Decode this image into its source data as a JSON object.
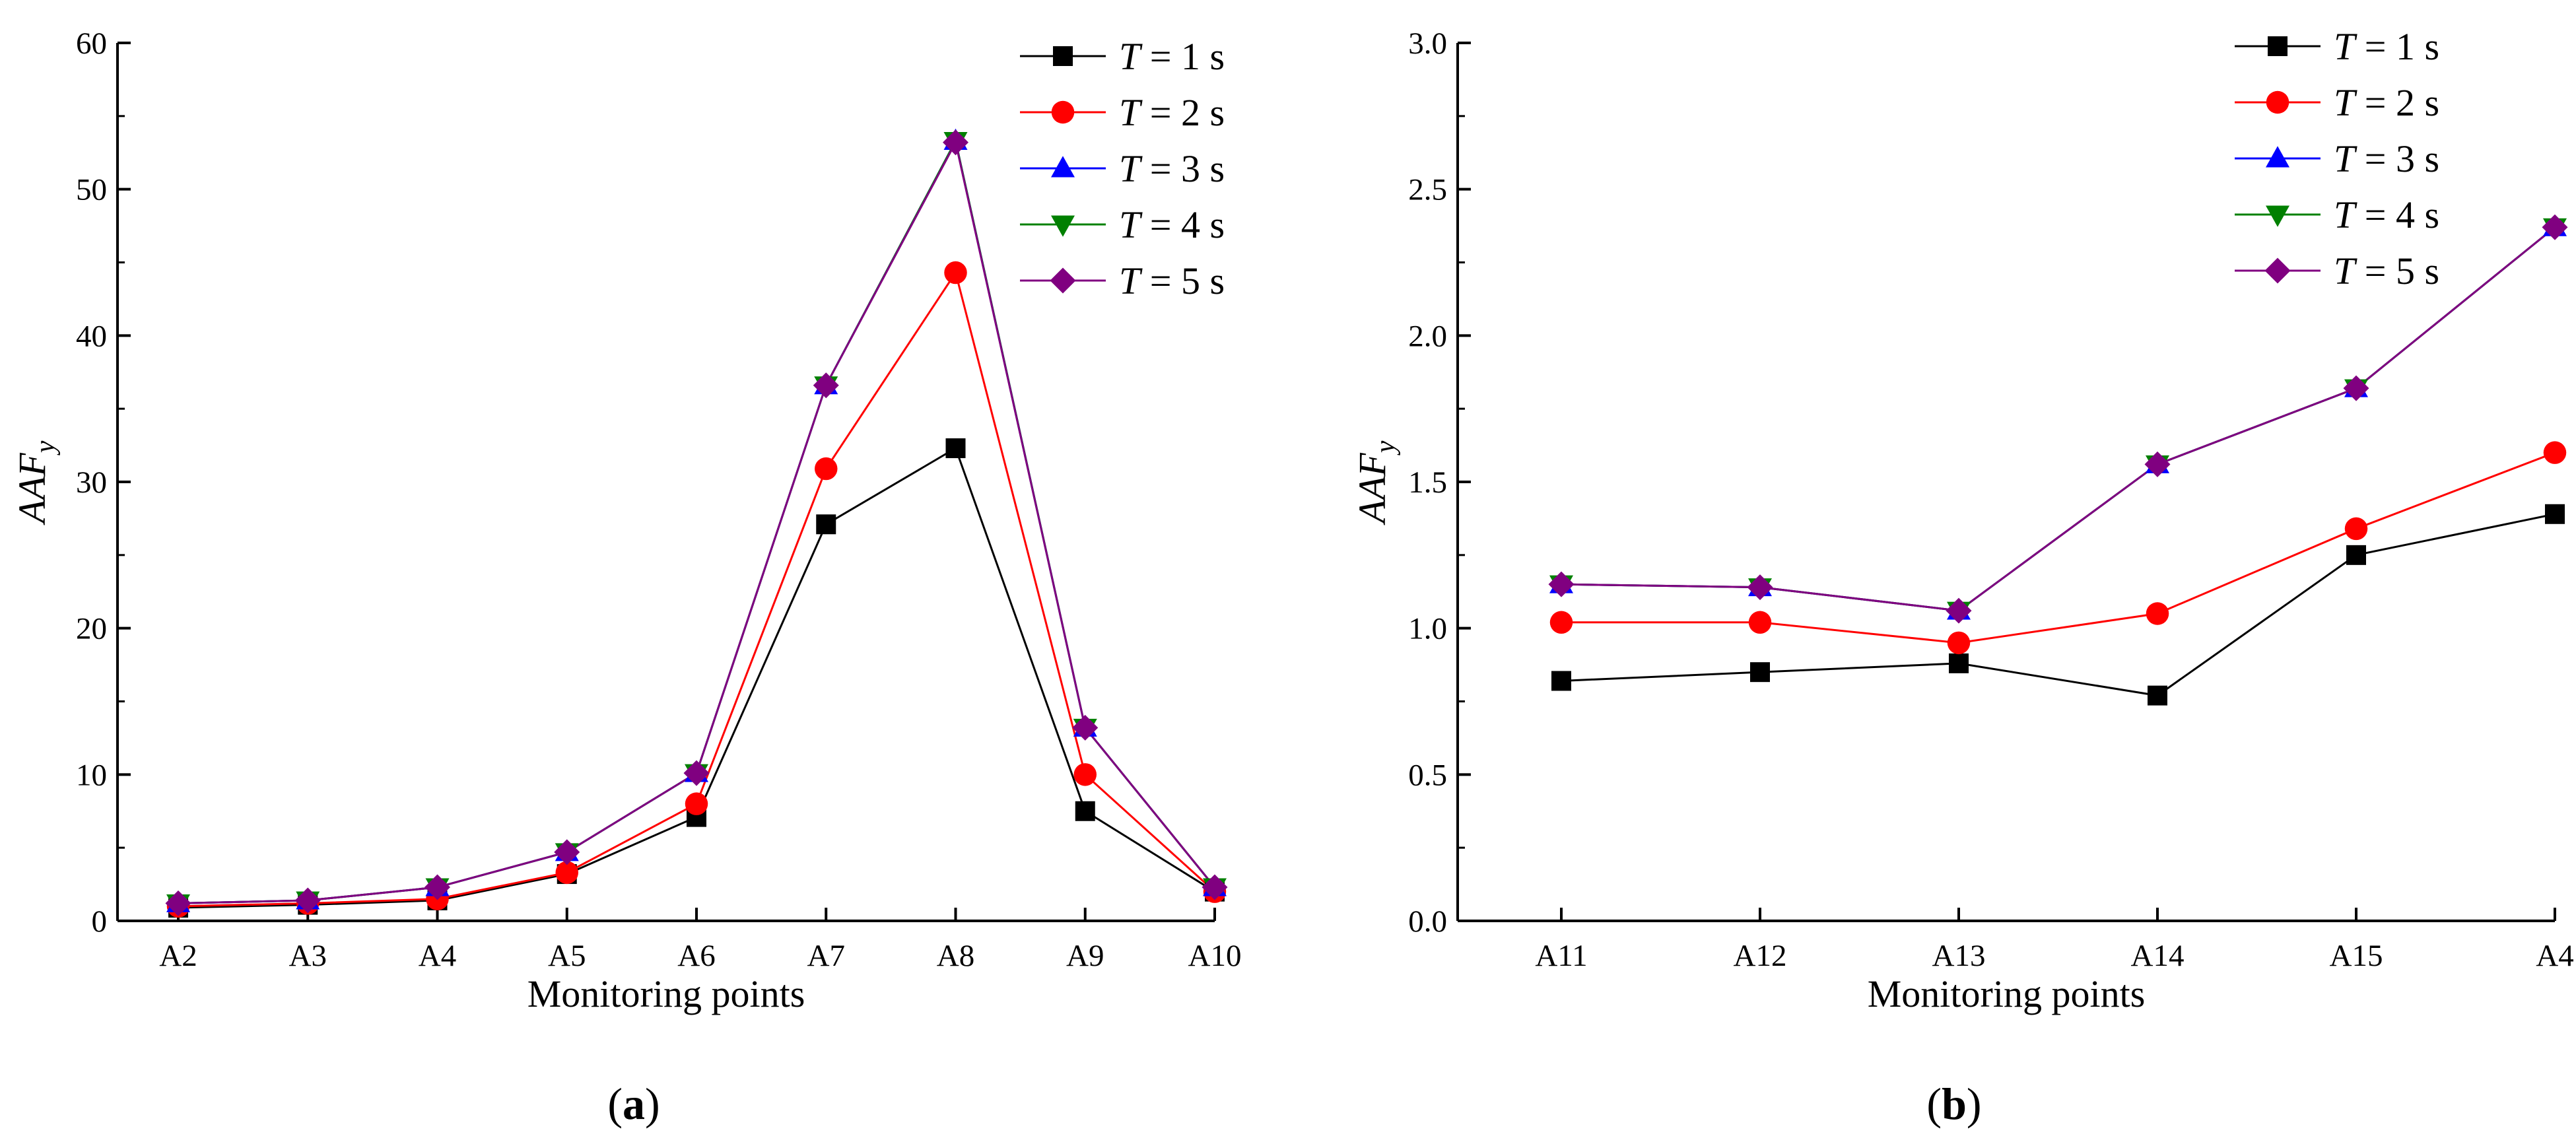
{
  "chart_data": [
    {
      "type": "line",
      "panel_label": {
        "pre": "(",
        "letter": "a",
        "post": ")"
      },
      "xlabel": "Monitoring points",
      "ylabel": {
        "base": "AAF",
        "sub": "y"
      },
      "categories": [
        "A2",
        "A3",
        "A4",
        "A5",
        "A6",
        "A7",
        "A8",
        "A9",
        "A10"
      ],
      "ylim": [
        0,
        60
      ],
      "yticks": [
        0,
        10,
        20,
        30,
        40,
        50,
        60
      ],
      "legend_position": "top-right",
      "series": [
        {
          "name": "T = 1 s",
          "T": "T",
          "rest": " = 1 s",
          "color": "#000000",
          "marker": "square",
          "values": [
            0.9,
            1.1,
            1.4,
            3.2,
            7.1,
            27.1,
            32.3,
            7.5,
            2.0
          ]
        },
        {
          "name": "T = 2 s",
          "T": "T",
          "rest": " = 2 s",
          "color": "#ff0000",
          "marker": "circle",
          "values": [
            1.0,
            1.2,
            1.5,
            3.3,
            8.0,
            30.9,
            44.3,
            10.0,
            2.0
          ]
        },
        {
          "name": "T = 3 s",
          "T": "T",
          "rest": " = 3 s",
          "color": "#0000ff",
          "marker": "triangle-up",
          "values": [
            1.2,
            1.4,
            2.3,
            4.7,
            10.1,
            36.6,
            53.3,
            13.2,
            2.3
          ]
        },
        {
          "name": "T = 4 s",
          "T": "T",
          "rest": " = 4 s",
          "color": "#008000",
          "marker": "triangle-down",
          "values": [
            1.2,
            1.4,
            2.3,
            4.7,
            10.1,
            36.6,
            53.3,
            13.2,
            2.3
          ]
        },
        {
          "name": "T = 5 s",
          "T": "T",
          "rest": " = 5 s",
          "color": "#800080",
          "marker": "diamond",
          "values": [
            1.2,
            1.4,
            2.3,
            4.7,
            10.1,
            36.6,
            53.2,
            13.2,
            2.3
          ]
        }
      ]
    },
    {
      "type": "line",
      "panel_label": {
        "pre": "(",
        "letter": "b",
        "post": ")"
      },
      "xlabel": "Monitoring points",
      "ylabel": {
        "base": "AAF",
        "sub": "y"
      },
      "categories": [
        "A11",
        "A12",
        "A13",
        "A14",
        "A15",
        "A4"
      ],
      "ylim": [
        0,
        3.0
      ],
      "yticks": [
        "0.0",
        "0.5",
        "1.0",
        "1.5",
        "2.0",
        "2.5",
        "3.0"
      ],
      "legend_position": "top-right",
      "series": [
        {
          "name": "T = 1 s",
          "T": "T",
          "rest": " = 1 s",
          "color": "#000000",
          "marker": "square",
          "values": [
            0.82,
            0.85,
            0.88,
            0.77,
            1.25,
            1.39
          ]
        },
        {
          "name": "T = 2 s",
          "T": "T",
          "rest": " = 2 s",
          "color": "#ff0000",
          "marker": "circle",
          "values": [
            1.02,
            1.02,
            0.95,
            1.05,
            1.34,
            1.6
          ]
        },
        {
          "name": "T = 3 s",
          "T": "T",
          "rest": " = 3 s",
          "color": "#0000ff",
          "marker": "triangle-up",
          "values": [
            1.15,
            1.14,
            1.06,
            1.56,
            1.82,
            2.37
          ]
        },
        {
          "name": "T = 4 s",
          "T": "T",
          "rest": " = 4 s",
          "color": "#008000",
          "marker": "triangle-down",
          "values": [
            1.15,
            1.14,
            1.06,
            1.56,
            1.82,
            2.37
          ]
        },
        {
          "name": "T = 5 s",
          "T": "T",
          "rest": " = 5 s",
          "color": "#800080",
          "marker": "diamond",
          "values": [
            1.15,
            1.14,
            1.06,
            1.56,
            1.82,
            2.37
          ]
        }
      ]
    }
  ]
}
